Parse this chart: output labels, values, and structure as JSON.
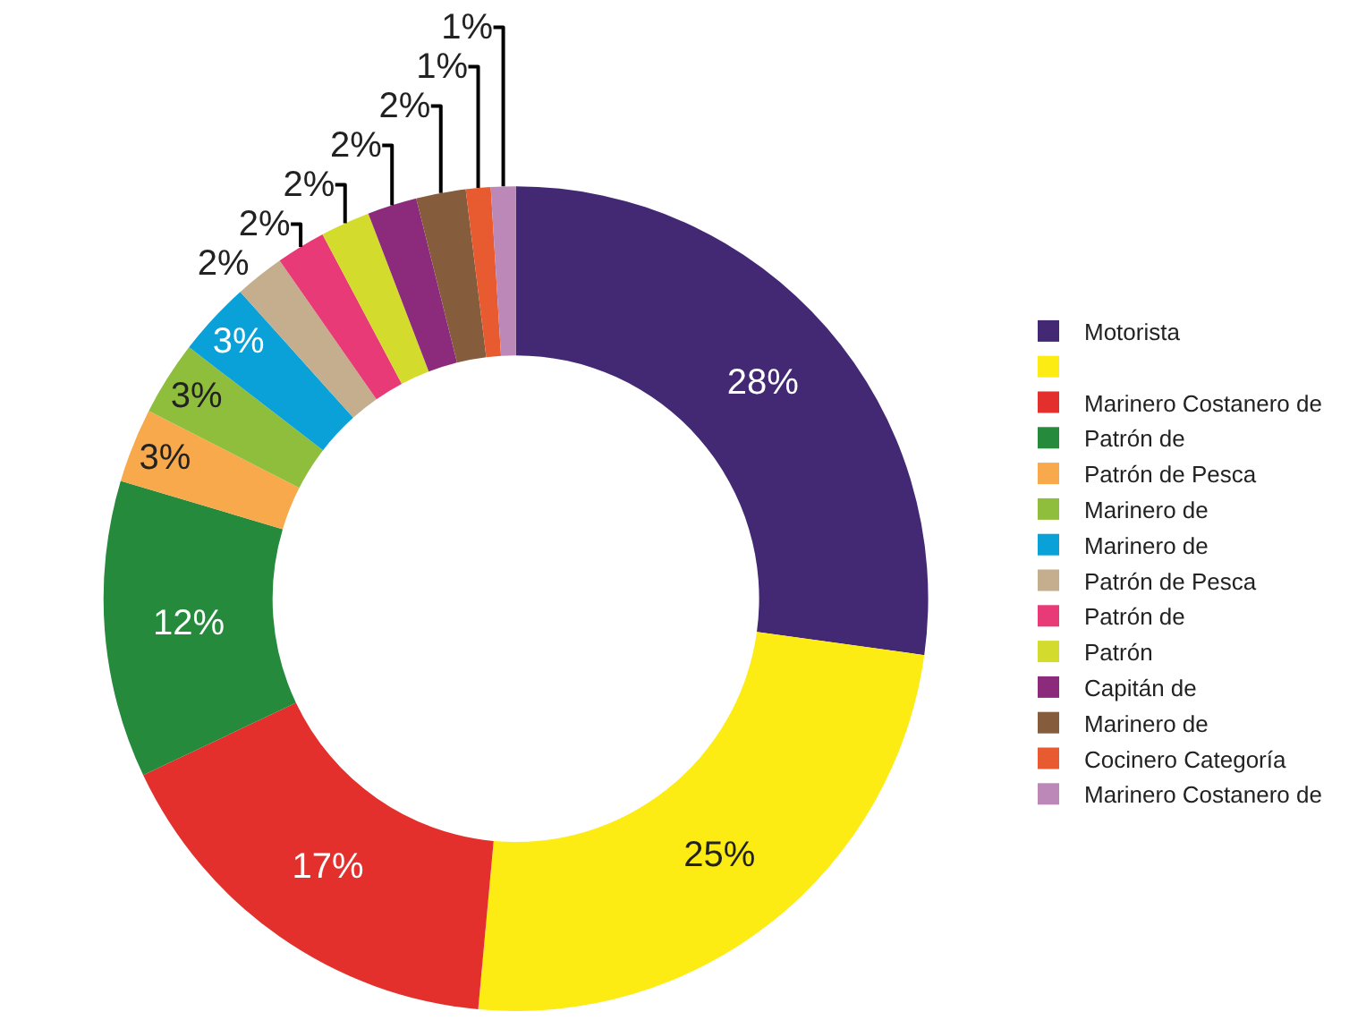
{
  "chart_data": {
    "type": "donut",
    "categories": [
      "Motorista",
      null,
      "Marinero Costanero de",
      "Patrón de",
      "Patrón de Pesca",
      "Marinero de",
      "Marinero de",
      "Patrón de Pesca",
      "Patrón de",
      "Patrón",
      "Capitán de",
      "Marinero de",
      "Cocinero Categoría",
      "Marinero Costanero de"
    ],
    "values": [
      28,
      25,
      17,
      12,
      3,
      3,
      3,
      2,
      2,
      2,
      2,
      2,
      1,
      1
    ],
    "value_labels": [
      "28%",
      "25%",
      "17%",
      "12%",
      "3%",
      "3%",
      "3%",
      "2%",
      "2%",
      "2%",
      "2%",
      "2%",
      "1%",
      "1%"
    ],
    "colors": [
      "#432874",
      "#fcec14",
      "#e3302c",
      "#268a3d",
      "#f8a94b",
      "#8fbe3c",
      "#0aa0d8",
      "#c4ae8d",
      "#e83a77",
      "#d3db2c",
      "#8c2a7c",
      "#855c3c",
      "#e85a30",
      "#bc88b8"
    ],
    "legend": "right"
  }
}
